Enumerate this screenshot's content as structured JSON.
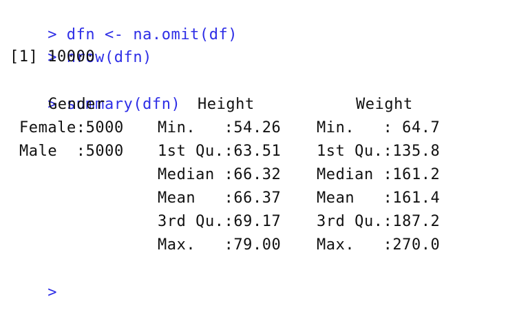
{
  "console": {
    "commands": [
      {
        "prompt": ">",
        "text": "dfn <- na.omit(df)"
      },
      {
        "prompt": ">",
        "text": "nrow(dfn)"
      }
    ],
    "nrow_output": "[1] 10000",
    "summary_command": {
      "prompt": ">",
      "text": "summary(dfn)"
    },
    "summary": {
      "headers": [
        "Gender",
        "Height",
        "Weight"
      ],
      "gender": [
        "Female:5000",
        "Male  :5000"
      ],
      "height": [
        "Min.   :54.26",
        "1st Qu.:63.51",
        "Median :66.32",
        "Mean   :66.37",
        "3rd Qu.:69.17",
        "Max.   :79.00"
      ],
      "weight": [
        "Min.   : 64.7",
        "1st Qu.:135.8",
        "Median :161.2",
        "Mean   :161.4",
        "3rd Qu.:187.2",
        "Max.   :270.0"
      ]
    },
    "final_prompt": ">"
  },
  "colors": {
    "command": "#2e2ee6",
    "output": "#111111",
    "background": "#ffffff"
  }
}
